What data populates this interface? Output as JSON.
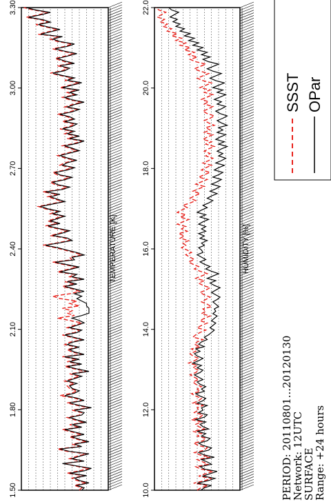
{
  "chart_data": [
    {
      "type": "line",
      "title": "TEMPERATURE [K]",
      "ylim": [
        1.5,
        3.3
      ],
      "yticks": [
        "3.30",
        "3.00",
        "2.70",
        "2.40",
        "2.10",
        "1.80",
        "1.50"
      ],
      "grid": true,
      "series": [
        {
          "name": "SSST",
          "color": "#e8201a",
          "style": "dashed",
          "values": [
            2.1,
            2.05,
            2.2,
            1.95,
            2.15,
            2.25,
            2.0,
            2.35,
            2.1,
            1.9,
            2.2,
            2.4,
            2.05,
            2.3,
            2.15,
            1.95,
            2.35,
            2.55,
            2.1,
            2.25,
            1.95,
            2.15,
            2.3,
            2.05,
            2.25,
            2.45,
            2.1,
            2.3,
            2.0,
            2.2,
            2.35,
            2.1,
            2.05,
            2.25,
            1.9,
            2.15,
            2.35,
            2.05,
            2.2,
            2.5,
            2.25,
            2.15,
            2.3,
            2.35,
            2.2,
            2.4,
            2.25,
            2.1,
            2.3,
            1.95,
            2.2,
            2.4,
            2.1,
            2.35,
            2.15,
            2.45,
            2.05,
            2.25,
            2.35,
            2.15,
            2.4,
            2.3,
            2.05,
            2.25,
            2.45,
            2.2,
            2.1,
            2.35,
            2.2,
            2.05,
            2.3,
            2.55,
            2.2,
            2.35,
            2.25,
            2.45,
            2.1,
            2.3,
            2.15,
            2.5,
            2.65,
            2.3,
            2.1,
            2.25,
            2.45,
            2.2,
            2.4,
            2.05,
            2.3,
            2.2,
            2.55,
            2.35,
            2.15,
            2.4,
            2.65,
            2.25,
            2.3,
            2.05,
            2.2,
            2.4,
            2.6,
            2.85,
            2.55,
            2.3,
            2.4,
            2.7,
            2.5,
            2.35,
            2.6,
            2.8,
            2.55,
            2.75,
            2.6,
            2.45,
            2.7,
            2.55,
            2.8,
            2.95,
            2.7,
            2.45,
            2.6,
            2.75,
            2.55,
            2.85,
            2.5,
            2.35,
            2.6,
            2.7,
            2.45,
            2.3,
            2.55,
            2.65,
            2.4,
            2.25,
            2.5,
            2.4,
            2.2,
            2.4,
            2.55,
            2.35,
            2.15,
            2.3,
            2.45,
            2.2,
            2.05,
            2.35,
            2.15,
            2.4,
            2.25,
            2.5,
            2.3,
            2.2,
            2.45,
            2.25,
            2.35,
            2.55,
            2.3,
            2.15,
            2.4,
            2.25,
            2.05,
            2.3,
            2.45,
            2.2,
            2.35,
            2.15,
            2.5,
            2.3,
            2.1,
            2.4,
            2.25,
            2.5,
            2.7,
            2.45,
            2.35,
            2.55,
            2.25,
            2.45,
            2.6,
            2.4,
            2.2,
            2.45,
            2.65,
            2.4,
            2.25,
            2.55,
            2.7,
            2.5,
            2.95,
            2.75,
            2.55,
            2.8,
            3.0,
            2.75,
            2.9,
            3.2,
            2.95,
            2.75,
            3.05,
            3.25
          ]
        },
        {
          "name": "OPar",
          "color": "#000000",
          "style": "solid",
          "values": [
            2.05,
            2.0,
            2.15,
            1.9,
            2.1,
            2.2,
            1.95,
            2.3,
            2.0,
            1.85,
            2.15,
            2.45,
            2.0,
            2.25,
            2.1,
            1.9,
            2.3,
            2.5,
            2.05,
            2.2,
            1.9,
            2.1,
            2.25,
            2.0,
            2.2,
            2.4,
            2.05,
            2.25,
            1.95,
            2.15,
            2.3,
            2.05,
            2.0,
            2.2,
            1.85,
            2.1,
            2.3,
            2.0,
            2.15,
            2.4,
            2.2,
            2.1,
            2.25,
            2.3,
            2.15,
            2.35,
            2.2,
            2.05,
            2.25,
            1.9,
            2.15,
            2.35,
            2.05,
            2.3,
            2.1,
            2.4,
            2.0,
            2.2,
            2.3,
            2.1,
            2.35,
            2.25,
            2.0,
            2.2,
            2.4,
            2.15,
            2.05,
            2.3,
            2.15,
            2.0,
            2.1,
            2.25,
            2.05,
            1.9,
            1.9,
            1.9,
            1.95,
            1.95,
            2.05,
            2.15,
            2.05,
            2.2,
            2.0,
            2.2,
            2.4,
            2.15,
            2.35,
            2.0,
            2.25,
            2.15,
            2.5,
            2.3,
            2.1,
            2.35,
            2.6,
            2.2,
            2.25,
            2.0,
            2.15,
            2.35,
            2.55,
            2.8,
            2.5,
            2.25,
            2.35,
            2.65,
            2.45,
            2.3,
            2.55,
            2.75,
            2.5,
            2.7,
            2.55,
            2.4,
            2.65,
            2.5,
            2.75,
            2.9,
            2.65,
            2.4,
            2.55,
            2.7,
            2.5,
            2.8,
            2.45,
            2.3,
            2.55,
            2.65,
            2.4,
            2.25,
            2.5,
            2.6,
            2.35,
            2.2,
            2.45,
            2.35,
            2.15,
            2.35,
            2.5,
            2.3,
            2.1,
            2.25,
            2.4,
            2.15,
            2.0,
            2.3,
            2.1,
            2.35,
            2.2,
            2.45,
            2.25,
            2.15,
            2.4,
            2.2,
            2.3,
            2.5,
            2.25,
            2.1,
            2.35,
            2.2,
            2.0,
            2.25,
            2.4,
            2.15,
            2.3,
            2.1,
            2.45,
            2.25,
            2.05,
            2.35,
            2.2,
            2.45,
            2.65,
            2.4,
            2.3,
            2.5,
            2.2,
            2.4,
            2.55,
            2.35,
            2.15,
            2.4,
            2.6,
            2.35,
            2.2,
            2.5,
            2.65,
            2.45,
            2.9,
            2.7,
            2.5,
            2.75,
            2.95,
            2.7,
            2.85,
            3.15,
            2.9,
            2.7,
            3.0,
            3.2
          ]
        }
      ]
    },
    {
      "type": "line",
      "title": "HUMIDITY [%]",
      "ylim": [
        10.0,
        22.0
      ],
      "yticks": [
        "22.0",
        "20.0",
        "18.0",
        "16.0",
        "14.0",
        "12.0",
        "10.0"
      ],
      "grid": true,
      "series": [
        {
          "name": "SSST",
          "color": "#e8201a",
          "style": "dashed",
          "values": [
            16.0,
            15.5,
            14.5,
            16.5,
            15.0,
            14.0,
            15.8,
            14.8,
            13.8,
            15.5,
            16.2,
            14.5,
            15.2,
            16.0,
            14.2,
            15.6,
            16.4,
            15.0,
            14.6,
            15.8,
            16.5,
            15.2,
            14.8,
            16.0,
            15.4,
            16.6,
            15.0,
            15.8,
            16.2,
            15.4,
            16.8,
            15.6,
            15.2,
            16.4,
            15.8,
            16.0,
            15.2,
            16.6,
            15.8,
            15.4,
            16.2,
            16.8,
            15.6,
            16.0,
            15.4,
            16.2,
            16.6,
            15.8,
            16.4,
            17.0,
            16.2,
            15.8,
            16.6,
            16.0,
            17.2,
            16.4,
            15.8,
            16.6,
            17.0,
            16.2,
            16.8,
            15.6,
            16.4,
            16.0,
            15.2,
            16.6,
            16.2,
            15.6,
            14.8,
            16.0,
            15.4,
            14.6,
            15.6,
            15.0,
            14.2,
            15.4,
            14.8,
            15.2,
            14.0,
            14.6,
            15.4,
            14.8,
            14.2,
            15.0,
            15.6,
            14.8,
            14.2,
            15.2,
            15.8,
            15.0,
            16.2,
            15.4,
            14.6,
            15.6,
            16.4,
            15.8,
            16.6,
            17.2,
            16.4,
            17.0,
            17.6,
            16.8,
            17.4,
            18.2,
            17.6,
            18.0,
            17.2,
            18.4,
            17.8,
            18.6,
            17.4,
            18.2,
            17.6,
            18.8,
            18.0,
            17.2,
            18.4,
            17.6,
            18.8,
            18.2,
            17.4,
            18.0,
            17.0,
            16.2,
            17.0,
            16.4,
            15.6,
            16.6,
            15.8,
            15.0,
            16.2,
            15.4,
            14.6,
            15.8,
            15.0,
            14.2,
            15.4,
            14.8,
            14.0,
            15.2,
            14.4,
            13.8,
            14.8,
            14.2,
            15.0,
            14.4,
            13.6,
            14.8,
            14.0,
            15.2,
            14.6,
            13.8,
            15.0,
            14.2,
            14.8,
            13.6,
            14.4,
            15.0,
            14.2,
            13.6,
            14.6,
            15.2,
            14.4,
            13.8,
            15.0,
            14.4,
            15.4,
            14.6,
            13.8,
            15.0,
            14.2,
            15.6,
            14.8,
            14.0,
            15.2,
            16.0,
            15.2,
            14.4,
            15.6,
            16.4,
            15.6,
            14.8,
            16.2,
            17.0,
            16.0,
            17.2,
            16.4,
            17.8,
            17.0,
            18.4,
            17.6,
            19.0,
            18.2,
            19.6,
            18.8,
            20.2,
            19.6,
            20.8,
            20.2,
            21.2,
            20.6,
            21.6,
            21.0,
            20.4,
            21.4,
            21.8
          ]
        },
        {
          "name": "OPar",
          "color": "#000000",
          "style": "solid",
          "values": [
            15.5,
            15.0,
            14.0,
            16.0,
            14.5,
            13.5,
            15.2,
            14.2,
            13.2,
            15.0,
            15.6,
            14.0,
            14.6,
            15.4,
            13.6,
            15.0,
            15.8,
            14.4,
            14.0,
            15.2,
            15.8,
            14.6,
            14.2,
            15.4,
            14.8,
            16.0,
            14.4,
            15.2,
            15.6,
            14.8,
            16.2,
            15.0,
            14.6,
            15.8,
            15.2,
            15.4,
            14.6,
            16.0,
            15.2,
            14.8,
            15.6,
            16.2,
            15.0,
            15.4,
            14.8,
            15.6,
            16.0,
            15.2,
            15.8,
            16.4,
            15.6,
            15.2,
            16.0,
            15.4,
            16.6,
            15.8,
            15.2,
            16.0,
            16.4,
            15.6,
            16.2,
            15.0,
            15.8,
            15.4,
            14.6,
            15.0,
            14.4,
            14.0,
            13.6,
            14.2,
            13.8,
            13.4,
            14.0,
            13.6,
            13.2,
            13.8,
            13.4,
            13.6,
            13.0,
            13.4,
            13.8,
            13.2,
            12.8,
            13.4,
            14.0,
            13.4,
            12.8,
            13.6,
            14.2,
            13.4,
            14.6,
            13.8,
            13.0,
            14.0,
            14.8,
            14.2,
            15.0,
            15.6,
            14.8,
            15.4,
            16.0,
            15.2,
            15.4,
            15.8,
            15.0,
            15.4,
            14.6,
            15.6,
            15.0,
            15.8,
            14.8,
            15.4,
            14.8,
            15.8,
            15.2,
            14.4,
            15.6,
            14.8,
            16.0,
            15.4,
            14.6,
            15.2,
            14.4,
            13.8,
            14.6,
            14.0,
            13.2,
            14.2,
            13.4,
            12.8,
            14.0,
            13.2,
            12.6,
            13.8,
            13.0,
            12.4,
            13.6,
            13.0,
            12.2,
            13.4,
            12.6,
            12.0,
            13.0,
            12.4,
            13.2,
            12.6,
            11.8,
            13.0,
            12.2,
            13.4,
            12.8,
            12.0,
            13.2,
            12.4,
            13.0,
            11.8,
            12.6,
            13.2,
            12.4,
            11.8,
            12.8,
            13.4,
            12.6,
            12.0,
            13.2,
            12.6,
            13.6,
            12.8,
            12.0,
            13.2,
            12.4,
            13.8,
            13.0,
            12.2,
            13.4,
            14.2,
            13.4,
            12.6,
            13.8,
            14.6,
            13.8,
            13.0,
            14.4,
            15.2,
            14.2,
            15.4,
            14.6,
            16.0,
            15.2,
            16.6,
            15.8,
            17.2,
            16.4,
            17.8,
            17.0,
            18.4,
            17.8,
            19.0,
            18.4,
            19.4,
            18.8,
            19.8,
            19.2,
            18.6,
            19.6,
            20.0
          ]
        }
      ]
    }
  ],
  "legend": {
    "items": [
      {
        "label": "SSST",
        "color": "#e8201a",
        "style": "dashed"
      },
      {
        "label": "OPar",
        "color": "#000000",
        "style": "solid"
      }
    ]
  },
  "info": {
    "lines": [
      "PERIOD: 20110801...20120130",
      "Network: 12UTC",
      "SURFACE",
      "Range: +24 hours"
    ]
  }
}
